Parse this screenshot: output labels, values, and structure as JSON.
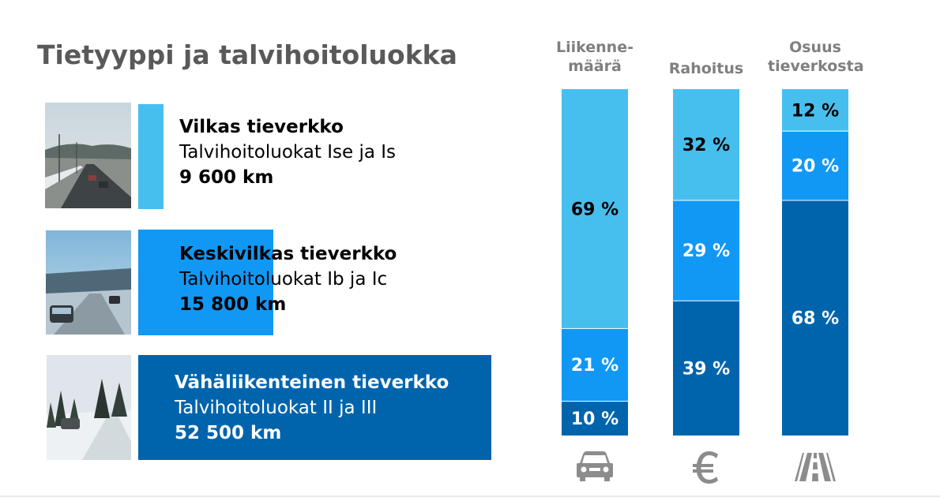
{
  "title": "Tietyyppi ja talvihoitoluokka",
  "rows": [
    {
      "name": "Vilkas tieverkko",
      "classes": "Talvihoitoluokat Ise ja Is",
      "length": "9 600 km",
      "km": 9600,
      "color": "#47bfee",
      "text_color": "#000000"
    },
    {
      "name": "Keskivilkas tieverkko",
      "classes": "Talvihoitoluokat Ib ja Ic",
      "length": "15 800 km",
      "km": 15800,
      "color": "#1198f5",
      "text_color": "#000000"
    },
    {
      "name": "Vähäliikenteinen tieverkko",
      "classes": "Talvihoitoluokat II ja III",
      "length": "52 500 km",
      "km": 52500,
      "color": "#0064ad",
      "text_color": "#ffffff"
    }
  ],
  "columns": [
    {
      "header_lines": [
        "Liikenne-",
        "määrä"
      ],
      "icon": "car-icon"
    },
    {
      "header_lines": [
        "Rahoitus"
      ],
      "icon": "euro-icon"
    },
    {
      "header_lines": [
        "Osuus",
        "tieverkosta"
      ],
      "icon": "road-icon"
    }
  ],
  "chart_data": {
    "type": "bar",
    "stacked": true,
    "percent": true,
    "categories": [
      "Liikenne-määrä",
      "Rahoitus",
      "Osuus tieverkosta"
    ],
    "series": [
      {
        "name": "Vilkas tieverkko",
        "values": [
          69,
          32,
          12
        ],
        "labels": [
          "69 %",
          "32 %",
          "12 %"
        ],
        "color": "#47bfee",
        "label_color": "#000000"
      },
      {
        "name": "Keskivilkas tieverkko",
        "values": [
          21,
          29,
          20
        ],
        "labels": [
          "21 %",
          "29 %",
          "20 %"
        ],
        "color": "#1198f5",
        "label_color": "#ffffff"
      },
      {
        "name": "Vähäliikenteinen tieverkko",
        "values": [
          10,
          39,
          68
        ],
        "labels": [
          "10 %",
          "39 %",
          "68 %"
        ],
        "color": "#0064ad",
        "label_color": "#ffffff"
      }
    ],
    "ylim": [
      0,
      100
    ],
    "grid": false,
    "legend": "none"
  }
}
